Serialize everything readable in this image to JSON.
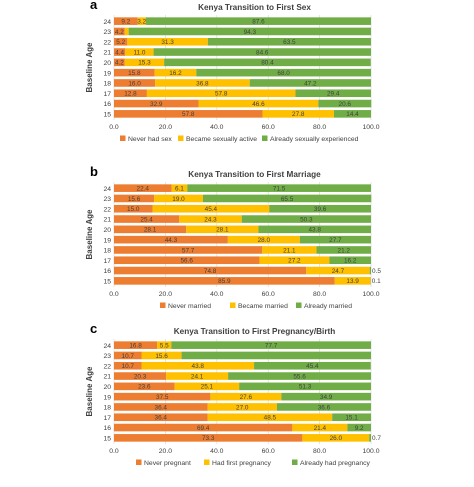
{
  "colors": {
    "orange": "#ED7D31",
    "yellow": "#FFC000",
    "green": "#70AD47",
    "grid": "#D9D9D9",
    "text": "#404040"
  },
  "chart_data": [
    {
      "panel_letter": "a",
      "type": "bar",
      "orientation": "horizontal",
      "stacked": true,
      "title": "Kenya Transition to First Sex",
      "ylabel": "Baseline Age",
      "xlabel": "",
      "categories": [
        "24",
        "23",
        "22",
        "21",
        "20",
        "19",
        "18",
        "17",
        "16",
        "15"
      ],
      "xlim": [
        0,
        100
      ],
      "xticks": [
        "0.0",
        "20.0",
        "40.0",
        "60.0",
        "80.0",
        "100.0"
      ],
      "grid": true,
      "legend_position": "bottom",
      "series": [
        {
          "name": "Never had sex",
          "color": "orange",
          "values": [
            9.2,
            4.2,
            5.2,
            4.4,
            4.2,
            15.8,
            16.0,
            12.8,
            32.9,
            57.8
          ],
          "labels": [
            "9.2",
            "4.2",
            "5.2",
            "4.4",
            "4.2",
            "15.8",
            "16.0",
            "12.8",
            "32.9",
            "57.8"
          ]
        },
        {
          "name": "Became sexually active",
          "color": "yellow",
          "values": [
            3.2,
            1.5,
            31.3,
            11.0,
            15.3,
            16.2,
            36.8,
            57.8,
            46.6,
            27.8
          ],
          "labels": [
            "3.2",
            "",
            "31.3",
            "11.0",
            "15.3",
            "16.2",
            "36.8",
            "57.8",
            "46.6",
            "27.8"
          ]
        },
        {
          "name": "Already sexually experienced",
          "color": "green",
          "values": [
            87.6,
            94.3,
            63.5,
            84.6,
            80.4,
            68.0,
            47.2,
            29.4,
            20.6,
            14.4
          ],
          "labels": [
            "87.6",
            "94.3",
            "63.5",
            "84.6",
            "80.4",
            "68.0",
            "47.2",
            "29.4",
            "20.6",
            "14.4"
          ]
        }
      ]
    },
    {
      "panel_letter": "b",
      "type": "bar",
      "orientation": "horizontal",
      "stacked": true,
      "title": "Kenya Transition to First Marriage",
      "ylabel": "Baseline Age",
      "xlabel": "",
      "categories": [
        "24",
        "23",
        "22",
        "21",
        "20",
        "19",
        "18",
        "17",
        "16",
        "15"
      ],
      "xlim": [
        0,
        100
      ],
      "xticks": [
        "0.0",
        "20.0",
        "40.0",
        "60.0",
        "80.0",
        "100.0"
      ],
      "grid": true,
      "legend_position": "bottom",
      "series": [
        {
          "name": "Never married",
          "color": "orange",
          "values": [
            22.4,
            15.6,
            15.0,
            25.4,
            28.1,
            44.3,
            57.7,
            56.6,
            74.8,
            85.9
          ],
          "labels": [
            "22.4",
            "15.6",
            "15.0",
            "25.4",
            "28.1",
            "44.3",
            "57.7",
            "56.6",
            "74.8",
            "85.9"
          ]
        },
        {
          "name": "Became married",
          "color": "yellow",
          "values": [
            6.1,
            19.0,
            45.4,
            24.3,
            28.1,
            28.0,
            21.1,
            27.2,
            24.7,
            13.9
          ],
          "labels": [
            "6.1",
            "19.0",
            "45.4",
            "24.3",
            "28.1",
            "28.0",
            "21.1",
            "27.2",
            "24.7",
            "13.9"
          ]
        },
        {
          "name": "Already married",
          "color": "green",
          "values": [
            71.5,
            65.5,
            39.6,
            50.3,
            43.8,
            27.7,
            21.2,
            16.2,
            0.5,
            0.1
          ],
          "labels": [
            "71.5",
            "65.5",
            "39.6",
            "50.3",
            "43.8",
            "27.7",
            "21.2",
            "16.2",
            "0.5",
            "0.1"
          ]
        }
      ]
    },
    {
      "panel_letter": "c",
      "type": "bar",
      "orientation": "horizontal",
      "stacked": true,
      "title": "Kenya Transition to First Pregnancy/Birth",
      "ylabel": "Baseline Age",
      "xlabel": "",
      "categories": [
        "24",
        "23",
        "22",
        "21",
        "20",
        "19",
        "18",
        "17",
        "16",
        "15"
      ],
      "xlim": [
        0,
        100
      ],
      "xticks": [
        "0.0",
        "20.0",
        "40.0",
        "60.0",
        "80.0",
        "100.0"
      ],
      "grid": true,
      "legend_position": "bottom",
      "series": [
        {
          "name": "Never pregnant",
          "color": "orange",
          "values": [
            16.8,
            10.7,
            10.7,
            20.3,
            23.6,
            37.5,
            36.4,
            36.4,
            69.4,
            73.3
          ],
          "labels": [
            "16.8",
            "10.7",
            "10.7",
            "20.3",
            "23.6",
            "37.5",
            "36.4",
            "36.4",
            "69.4",
            "73.3"
          ]
        },
        {
          "name": "Had first pregnancy",
          "color": "yellow",
          "values": [
            5.5,
            15.6,
            43.8,
            24.1,
            25.1,
            27.6,
            27.0,
            48.5,
            21.4,
            26.0
          ],
          "labels": [
            "5.5",
            "15.6",
            "43.8",
            "24.1",
            "25.1",
            "27.6",
            "27.0",
            "48.5",
            "21.4",
            "26.0"
          ]
        },
        {
          "name": "Already had pregnancy",
          "color": "green",
          "values": [
            77.7,
            73.7,
            45.4,
            55.6,
            51.3,
            34.9,
            36.6,
            15.1,
            9.2,
            0.7
          ],
          "labels": [
            "77.7",
            "",
            "45.4",
            "55.6",
            "51.3",
            "34.9",
            "36.6",
            "15.1",
            "9.2",
            "0.7"
          ]
        }
      ]
    }
  ]
}
